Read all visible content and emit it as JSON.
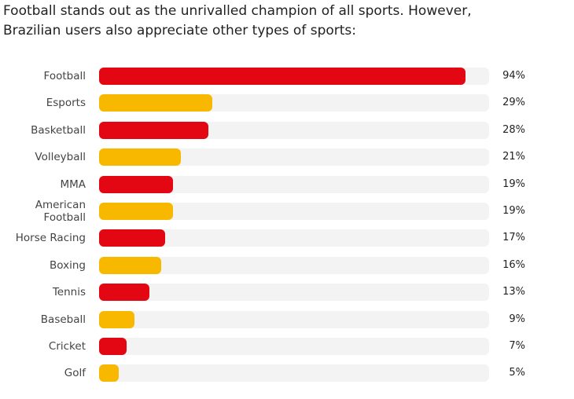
{
  "chart_data": {
    "type": "bar",
    "orientation": "horizontal",
    "title": "Football stands out as the unrivalled champion of all sports. However, Brazilian users also appreciate other types of sports:",
    "categories": [
      "Football",
      "Esports",
      "Basketball",
      "Volleyball",
      "MMA",
      "American Football",
      "Horse Racing",
      "Boxing",
      "Tennis",
      "Baseball",
      "Cricket",
      "Golf"
    ],
    "values": [
      94,
      29,
      28,
      21,
      19,
      19,
      17,
      16,
      13,
      9,
      7,
      5
    ],
    "value_labels": [
      "94%",
      "29%",
      "28%",
      "21%",
      "19%",
      "19%",
      "17%",
      "16%",
      "13%",
      "9%",
      "7%",
      "5%"
    ],
    "colors": [
      "#e30613",
      "#f9b800",
      "#e30613",
      "#f9b800",
      "#e30613",
      "#f9b800",
      "#e30613",
      "#f9b800",
      "#e30613",
      "#f9b800",
      "#e30613",
      "#f9b800"
    ],
    "xlim": [
      0,
      100
    ]
  }
}
